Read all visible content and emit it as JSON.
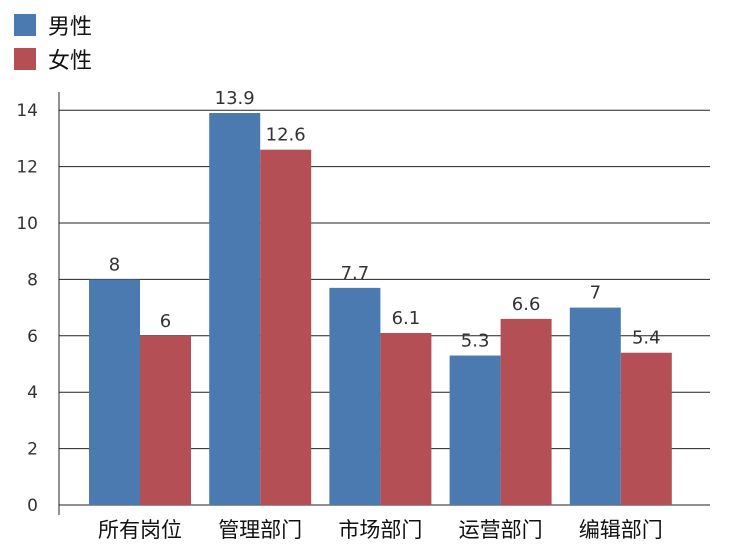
{
  "chart_data": {
    "type": "bar",
    "categories": [
      "所有岗位",
      "管理部门",
      "市场部门",
      "运营部门",
      "编辑部门"
    ],
    "series": [
      {
        "name": "男性",
        "values": [
          8,
          13.9,
          7.7,
          5.3,
          7
        ],
        "color": "#4a7ab0"
      },
      {
        "name": "女性",
        "values": [
          6,
          12.6,
          6.1,
          6.6,
          5.4
        ],
        "color": "#b44f55"
      }
    ],
    "title": "",
    "xlabel": "",
    "ylabel": "",
    "ylim": [
      0,
      15
    ],
    "yticks": [
      0,
      2,
      4,
      6,
      8,
      10,
      12,
      14
    ],
    "grid": true,
    "legend_position": "top-left",
    "colors": {
      "grid": "#222222",
      "axis": "#222222",
      "text": "#333333"
    }
  }
}
